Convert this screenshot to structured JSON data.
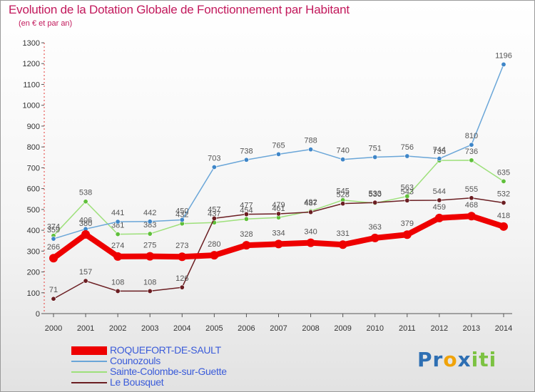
{
  "chart_data": {
    "type": "line",
    "title": "Evolution de la Dotation Globale de Fonctionnement par Habitant",
    "subtitle": "(en € et par an)",
    "x": [
      "2000",
      "2001",
      "2002",
      "2003",
      "2004",
      "2005",
      "2006",
      "2007",
      "2008",
      "2009",
      "2010",
      "2011",
      "2012",
      "2013",
      "2014"
    ],
    "yticks": [
      0,
      100,
      200,
      300,
      400,
      500,
      600,
      700,
      800,
      900,
      1000,
      1100,
      1200,
      1300
    ],
    "ylim": [
      0,
      1300
    ],
    "grid": false,
    "series": [
      {
        "name": "Sainte-Colombe-sur-Guette",
        "color": "#9de07a",
        "dot": "#5fbf3a",
        "values": [
          374,
          538,
          381,
          383,
          432,
          437,
          454,
          461,
          492,
          545,
          530,
          563,
          735,
          736,
          635
        ]
      },
      {
        "name": "Counozouls",
        "color": "#6aa6d8",
        "dot": "#3f86c8",
        "values": [
          359,
          406,
          441,
          442,
          450,
          703,
          738,
          765,
          788,
          740,
          751,
          756,
          744,
          810,
          1196
        ]
      },
      {
        "name": "Le Bousquet",
        "color": "#6b1e22",
        "dot": "#6b1e22",
        "values": [
          71,
          157,
          108,
          108,
          126,
          457,
          477,
          479,
          487,
          528,
          533,
          543,
          544,
          555,
          532
        ]
      },
      {
        "name": "ROQUEFORT-DE-SAULT",
        "color": "#ee0000",
        "dot": "#ee0000",
        "values": [
          266,
          380,
          274,
          275,
          273,
          280,
          328,
          334,
          340,
          331,
          363,
          379,
          459,
          468,
          418
        ]
      }
    ],
    "legend": [
      "ROQUEFORT-DE-SAULT",
      "Counozouls",
      "Sainte-Colombe-sur-Guette",
      "Le Bousquet"
    ]
  },
  "legend_colors": [
    "#ee0000",
    "#6aa6d8",
    "#9de07a",
    "#6b1e22"
  ],
  "logo": {
    "p": "Pr",
    "o": "o",
    "x": "x",
    "i": "iti"
  }
}
